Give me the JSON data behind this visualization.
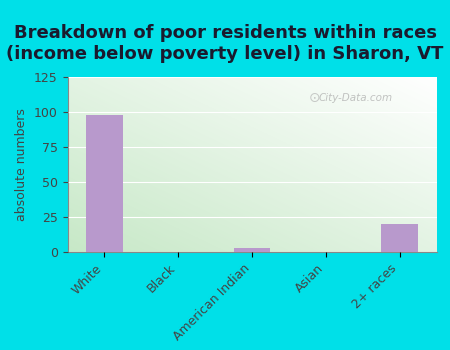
{
  "title": "Breakdown of poor residents within races\n(income below poverty level) in Sharon, VT",
  "categories": [
    "White",
    "Black",
    "American Indian",
    "Asian",
    "2+ races"
  ],
  "values": [
    98,
    0,
    3,
    0,
    20
  ],
  "bar_color": "#b899cc",
  "ylabel": "absolute numbers",
  "ylim": [
    0,
    125
  ],
  "yticks": [
    0,
    25,
    50,
    75,
    100,
    125
  ],
  "background_outer": "#00e0e8",
  "title_fontsize": 13,
  "label_fontsize": 9,
  "tick_fontsize": 9,
  "watermark": "City-Data.com",
  "grad_color_topleft": "#d6edd8",
  "grad_color_bottomleft": "#c8e8ca",
  "grad_color_topright": "#f5fcf5",
  "grad_color_bottomright": "#ffffff"
}
